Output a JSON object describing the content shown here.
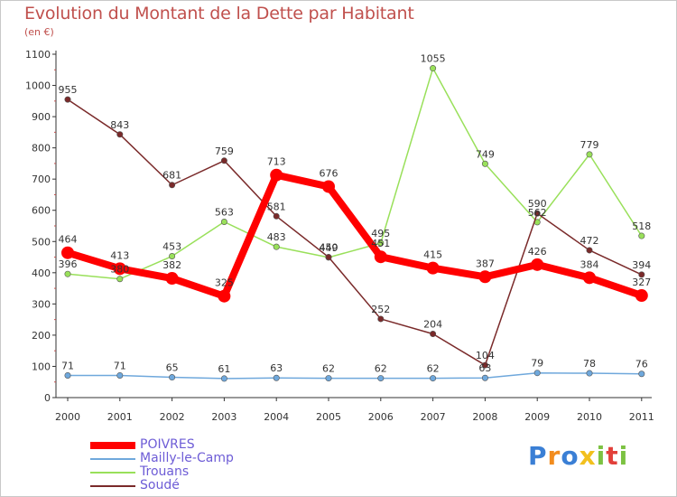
{
  "title": "Evolution du Montant de la Dette par Habitant",
  "subtitle": "(en €)",
  "chart_data": {
    "type": "line",
    "title": "Evolution du Montant de la Dette par Habitant",
    "subtitle": "(en €)",
    "xlabel": "",
    "ylabel": "",
    "categories": [
      "2000",
      "2001",
      "2002",
      "2003",
      "2004",
      "2005",
      "2006",
      "2007",
      "2008",
      "2009",
      "2010",
      "2011"
    ],
    "ylim": [
      0,
      1100
    ],
    "yticks": [
      0,
      100,
      200,
      300,
      400,
      500,
      600,
      700,
      800,
      900,
      1000,
      1100
    ],
    "grid": false,
    "legend_position": "bottom-left",
    "series": [
      {
        "name": "POIVRES",
        "color": "#ff0000",
        "values": [
          464,
          413,
          382,
          325,
          713,
          676,
          451,
          415,
          387,
          426,
          384,
          327
        ]
      },
      {
        "name": "Mailly-le-Camp",
        "color": "#6fa8dc",
        "values": [
          71,
          71,
          65,
          61,
          63,
          62,
          62,
          62,
          63,
          79,
          78,
          76
        ]
      },
      {
        "name": "Trouans",
        "color": "#99e05a",
        "values": [
          396,
          380,
          453,
          563,
          483,
          449,
          495,
          1055,
          749,
          562,
          779,
          518
        ]
      },
      {
        "name": "Soudé",
        "color": "#7a2a2a",
        "values": [
          955,
          843,
          681,
          759,
          581,
          450,
          252,
          204,
          104,
          590,
          472,
          394
        ]
      }
    ]
  },
  "legend": {
    "items": [
      "POIVRES",
      "Mailly-le-Camp",
      "Trouans",
      "Soudé"
    ]
  },
  "logo": {
    "text": "Proxiti"
  }
}
